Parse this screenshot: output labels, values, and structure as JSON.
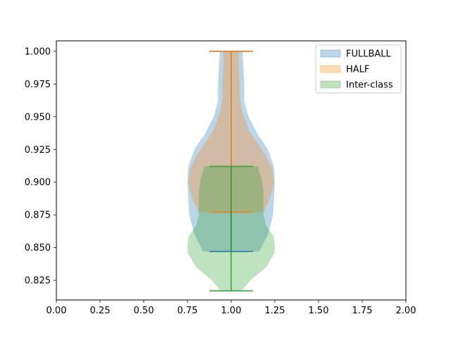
{
  "chart_data": {
    "type": "violin",
    "xlim": [
      0.0,
      2.0
    ],
    "ylim": [
      0.81,
      1.008
    ],
    "x_ticks": [
      {
        "v": 0.0,
        "label": "0.00"
      },
      {
        "v": 0.25,
        "label": "0.25"
      },
      {
        "v": 0.5,
        "label": "0.50"
      },
      {
        "v": 0.75,
        "label": "0.75"
      },
      {
        "v": 1.0,
        "label": "1.00"
      },
      {
        "v": 1.25,
        "label": "1.25"
      },
      {
        "v": 1.5,
        "label": "1.50"
      },
      {
        "v": 1.75,
        "label": "1.75"
      },
      {
        "v": 2.0,
        "label": "2.00"
      }
    ],
    "y_ticks": [
      {
        "v": 0.825,
        "label": "0.825"
      },
      {
        "v": 0.85,
        "label": "0.850"
      },
      {
        "v": 0.875,
        "label": "0.875"
      },
      {
        "v": 0.9,
        "label": "0.900"
      },
      {
        "v": 0.925,
        "label": "0.925"
      },
      {
        "v": 0.95,
        "label": "0.950"
      },
      {
        "v": 0.975,
        "label": "0.975"
      },
      {
        "v": 1.0,
        "label": "1.000"
      }
    ],
    "grid": false,
    "legend_position": "top-right",
    "series": [
      {
        "name": "FULLBALL",
        "position": 1.0,
        "min": 0.847,
        "max": 1.0,
        "color": "#1f77b4",
        "profile": [
          [
            0.847,
            0.16
          ],
          [
            0.86,
            0.21
          ],
          [
            0.875,
            0.24
          ],
          [
            0.888,
            0.245
          ],
          [
            0.9,
            0.25
          ],
          [
            0.912,
            0.245
          ],
          [
            0.925,
            0.21
          ],
          [
            0.937,
            0.15
          ],
          [
            0.95,
            0.1
          ],
          [
            0.962,
            0.075
          ],
          [
            0.975,
            0.075
          ],
          [
            0.988,
            0.07
          ],
          [
            1.0,
            0.065
          ]
        ]
      },
      {
        "name": "HALF",
        "position": 1.0,
        "min": 0.877,
        "max": 1.0,
        "color": "#ff7f0e",
        "profile": [
          [
            0.877,
            0.185
          ],
          [
            0.884,
            0.21
          ],
          [
            0.893,
            0.235
          ],
          [
            0.9,
            0.245
          ],
          [
            0.91,
            0.235
          ],
          [
            0.92,
            0.2
          ],
          [
            0.93,
            0.15
          ],
          [
            0.94,
            0.1
          ],
          [
            0.955,
            0.06
          ],
          [
            0.965,
            0.05
          ],
          [
            0.975,
            0.05
          ],
          [
            0.988,
            0.045
          ],
          [
            1.0,
            0.045
          ]
        ]
      },
      {
        "name": "Inter-class",
        "position": 1.0,
        "min": 0.817,
        "max": 0.912,
        "color": "#2ca02c",
        "profile": [
          [
            0.817,
            0.06
          ],
          [
            0.825,
            0.11
          ],
          [
            0.835,
            0.2
          ],
          [
            0.845,
            0.245
          ],
          [
            0.85,
            0.25
          ],
          [
            0.858,
            0.245
          ],
          [
            0.867,
            0.2
          ],
          [
            0.875,
            0.185
          ],
          [
            0.883,
            0.185
          ],
          [
            0.893,
            0.185
          ],
          [
            0.902,
            0.175
          ],
          [
            0.908,
            0.16
          ],
          [
            0.912,
            0.155
          ]
        ]
      }
    ]
  }
}
